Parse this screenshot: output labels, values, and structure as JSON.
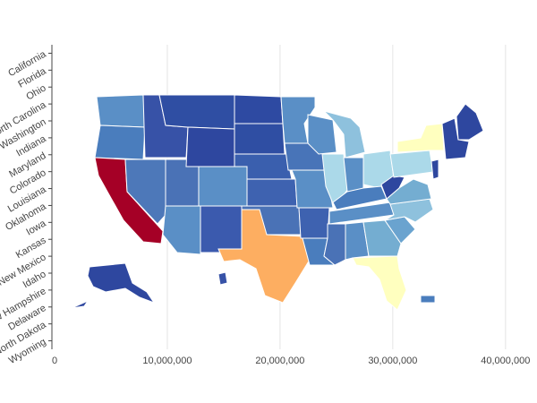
{
  "chart_data": {
    "type": "choropleth-map",
    "title": "",
    "xlabel": "",
    "ylabel": "",
    "xlim": [
      0,
      42000000
    ],
    "x_ticks": [
      {
        "value": 0,
        "label": "0"
      },
      {
        "value": 10000000,
        "label": "10,000,000"
      },
      {
        "value": 20000000,
        "label": "20,000,000"
      },
      {
        "value": 30000000,
        "label": "30,000,000"
      },
      {
        "value": 40000000,
        "label": "40,000,000"
      }
    ],
    "y_categories": [
      "California",
      "Florida",
      "Ohio",
      "North Carolina",
      "Washington",
      "Indiana",
      "Maryland",
      "Colorado",
      "Louisiana",
      "Oklahoma",
      "Iowa",
      "Kansas",
      "New Mexico",
      "Idaho",
      "New Hampshire",
      "Delaware",
      "North Dakota",
      "Wyoming"
    ],
    "grid": true,
    "color_scale": {
      "low": "#313695",
      "mid_low": "#4575b4",
      "mid": "#74add1",
      "light": "#abd9e9",
      "pale_yellow": "#ffffbf",
      "orange": "#fdae61",
      "high": "#a50026"
    },
    "regions": [
      {
        "name": "Washington",
        "color": "#5a8fc6"
      },
      {
        "name": "Oregon",
        "color": "#4a7dbd"
      },
      {
        "name": "California",
        "color": "#a50026"
      },
      {
        "name": "Idaho",
        "color": "#3752a7"
      },
      {
        "name": "Nevada",
        "color": "#4d78b9"
      },
      {
        "name": "Utah",
        "color": "#4a72b6"
      },
      {
        "name": "Arizona",
        "color": "#5a8fc6"
      },
      {
        "name": "Montana",
        "color": "#2f4ea3"
      },
      {
        "name": "Wyoming",
        "color": "#2e479f"
      },
      {
        "name": "Colorado",
        "color": "#5a8fc6"
      },
      {
        "name": "New Mexico",
        "color": "#3b5aae"
      },
      {
        "name": "North Dakota",
        "color": "#2e4aa2"
      },
      {
        "name": "South Dakota",
        "color": "#2f4ea3"
      },
      {
        "name": "Nebraska",
        "color": "#3a5fae"
      },
      {
        "name": "Kansas",
        "color": "#3e62b0"
      },
      {
        "name": "Oklahoma",
        "color": "#4a72b6"
      },
      {
        "name": "Texas",
        "color": "#fdae61"
      },
      {
        "name": "Minnesota",
        "color": "#5a8fc6"
      },
      {
        "name": "Iowa",
        "color": "#4874b8"
      },
      {
        "name": "Missouri",
        "color": "#5a8fc6"
      },
      {
        "name": "Arkansas",
        "color": "#3e62b0"
      },
      {
        "name": "Louisiana",
        "color": "#4a7dbd"
      },
      {
        "name": "Wisconsin",
        "color": "#5a8fc6"
      },
      {
        "name": "Illinois",
        "color": "#abd9e9"
      },
      {
        "name": "Michigan",
        "color": "#8ec1dd"
      },
      {
        "name": "Indiana",
        "color": "#5a8fc6"
      },
      {
        "name": "Ohio",
        "color": "#abd9e9"
      },
      {
        "name": "Kentucky",
        "color": "#4a7dbd"
      },
      {
        "name": "Tennessee",
        "color": "#5a8fc6"
      },
      {
        "name": "Mississippi",
        "color": "#4a72b6"
      },
      {
        "name": "Alabama",
        "color": "#5a8fc6"
      },
      {
        "name": "Georgia",
        "color": "#74add1"
      },
      {
        "name": "Florida",
        "color": "#ffffbf"
      },
      {
        "name": "South Carolina",
        "color": "#6aa3cf"
      },
      {
        "name": "North Carolina",
        "color": "#8ec1dd"
      },
      {
        "name": "Virginia",
        "color": "#74add1"
      },
      {
        "name": "West Virginia",
        "color": "#2e479f"
      },
      {
        "name": "Pennsylvania",
        "color": "#abd9e9"
      },
      {
        "name": "New York",
        "color": "#ffffbf"
      },
      {
        "name": "New England",
        "color": "#2e479f"
      },
      {
        "name": "Maine",
        "color": "#2e479f"
      },
      {
        "name": "Alaska",
        "color": "#2e479f"
      },
      {
        "name": "Hawaii",
        "color": "#3752a7"
      },
      {
        "name": "Puerto Rico",
        "color": "#4a7dbd"
      }
    ]
  }
}
